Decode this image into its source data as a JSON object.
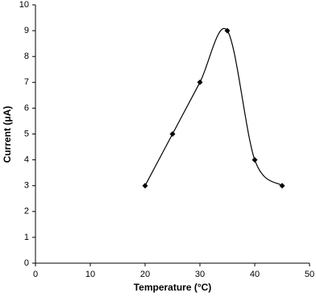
{
  "chart_data": {
    "type": "line",
    "x_label": "Temperature (°C)",
    "y_label": "Current (μA)",
    "x": [
      20,
      25,
      30,
      35,
      40,
      45
    ],
    "series": [
      {
        "color": "#000000",
        "values": [
          3,
          5,
          7,
          9,
          4,
          3
        ]
      }
    ],
    "xlim": [
      0,
      50
    ],
    "xticks": [
      0,
      10,
      20,
      30,
      40,
      50
    ],
    "ylim": [
      0,
      10
    ],
    "yticks": [
      0,
      1,
      2,
      3,
      4,
      5,
      6,
      7,
      8,
      9,
      10
    ],
    "smooth": true,
    "marker": "diamond",
    "grid": false
  }
}
